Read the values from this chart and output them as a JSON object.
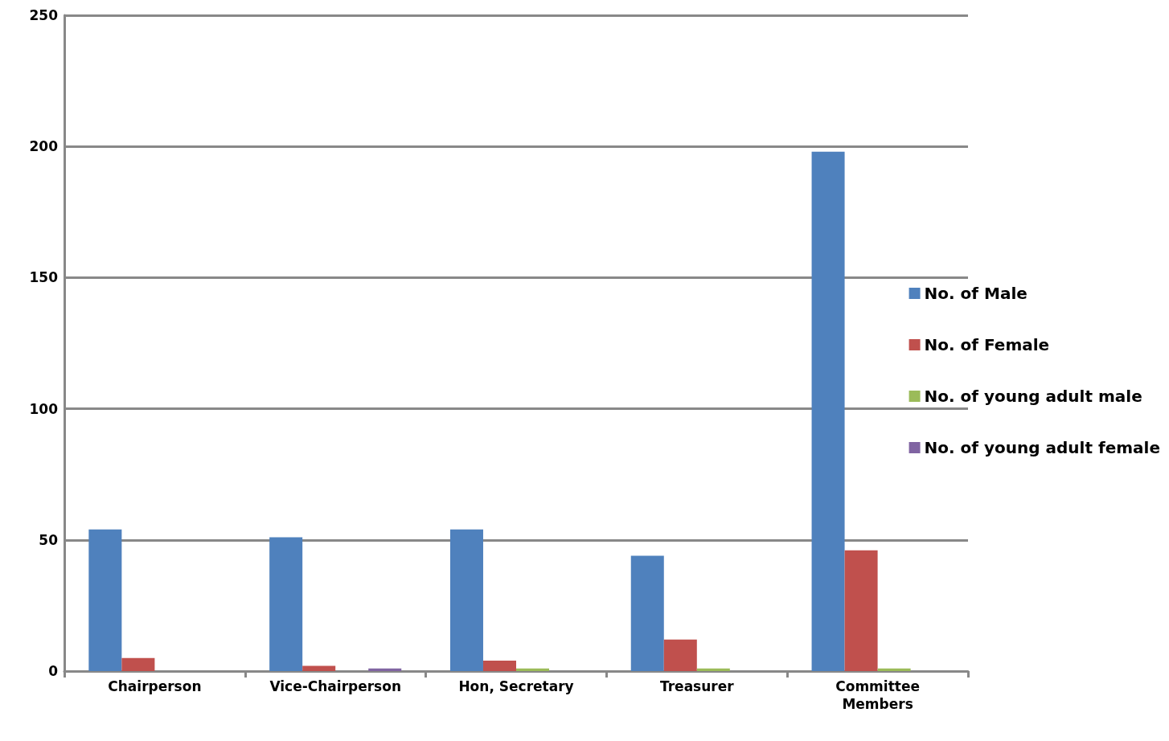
{
  "chart_data": {
    "type": "bar",
    "categories": [
      "Chairperson",
      "Vice-Chairperson",
      "Hon, Secretary",
      "Treasurer",
      "Committee Members"
    ],
    "series": [
      {
        "name": "No. of Male",
        "color": "#4f81bd",
        "values": [
          54,
          51,
          54,
          44,
          198
        ]
      },
      {
        "name": "No. of Female",
        "color": "#c0504d",
        "values": [
          5,
          2,
          4,
          12,
          46
        ]
      },
      {
        "name": "No. of young adult male",
        "color": "#9bbb59",
        "values": [
          0,
          0,
          1,
          1,
          1
        ]
      },
      {
        "name": "No. of young adult female",
        "color": "#8064a2",
        "values": [
          0,
          1,
          0,
          0,
          0
        ]
      }
    ],
    "ylim": [
      0,
      250
    ],
    "yticks": [
      0,
      50,
      100,
      150,
      200,
      250
    ],
    "grid": "y",
    "legend": "right"
  }
}
